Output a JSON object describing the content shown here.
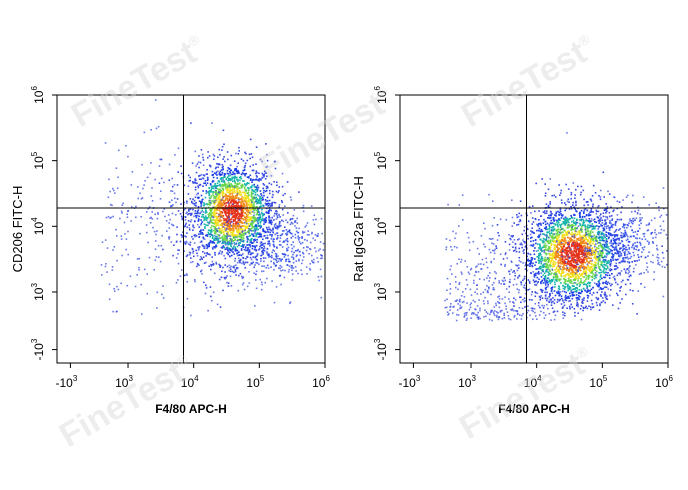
{
  "watermark": {
    "brand": "FineTest",
    "registered": "®"
  },
  "chart_data": [
    {
      "type": "scatter",
      "title": "",
      "xlabel": "F4/80 APC-H",
      "ylabel": "CD206 FITC-H",
      "x_ticks": [
        {
          "base": "-10",
          "exp": "3"
        },
        {
          "base": "10",
          "exp": "3"
        },
        {
          "base": "10",
          "exp": "4"
        },
        {
          "base": "10",
          "exp": "5"
        },
        {
          "base": "10",
          "exp": "6"
        }
      ],
      "y_ticks": [
        {
          "base": "-10",
          "exp": "3"
        },
        {
          "base": "10",
          "exp": "3"
        },
        {
          "base": "10",
          "exp": "4"
        },
        {
          "base": "10",
          "exp": "5"
        },
        {
          "base": "10",
          "exp": "6"
        }
      ],
      "x_scale": "biexponential",
      "y_scale": "biexponential",
      "xlim": [
        -1000,
        1000000
      ],
      "ylim": [
        -1000,
        1000000
      ],
      "gate": {
        "x": 7000,
        "y": 19000
      },
      "populations": [
        {
          "x": 38000,
          "y": 17000,
          "spread_x_decades": 0.32,
          "spread_y_decades": 0.38,
          "n": 2200,
          "density": "high"
        },
        {
          "x": 150000,
          "y": 5500,
          "spread_x_decades": 0.45,
          "spread_y_decades": 0.3,
          "n": 500,
          "density": "medium"
        },
        {
          "x": 5000,
          "y": 9000,
          "spread_x_decades": 0.7,
          "spread_y_decades": 0.6,
          "n": 350,
          "density": "low"
        }
      ]
    },
    {
      "type": "scatter",
      "title": "",
      "xlabel": "F4/80 APC-H",
      "ylabel": "Rat IgG2a FITC-H",
      "x_ticks": [
        {
          "base": "-10",
          "exp": "3"
        },
        {
          "base": "10",
          "exp": "3"
        },
        {
          "base": "10",
          "exp": "4"
        },
        {
          "base": "10",
          "exp": "5"
        },
        {
          "base": "10",
          "exp": "6"
        }
      ],
      "y_ticks": [
        {
          "base": "-10",
          "exp": "3"
        },
        {
          "base": "10",
          "exp": "3"
        },
        {
          "base": "10",
          "exp": "4"
        },
        {
          "base": "10",
          "exp": "5"
        },
        {
          "base": "10",
          "exp": "6"
        }
      ],
      "x_scale": "biexponential",
      "y_scale": "biexponential",
      "xlim": [
        -1000,
        1000000
      ],
      "ylim": [
        -1000,
        1000000
      ],
      "gate": {
        "x": 7000,
        "y": 19000
      },
      "populations": [
        {
          "x": 35000,
          "y": 3800,
          "spread_x_decades": 0.38,
          "spread_y_decades": 0.38,
          "n": 2400,
          "density": "high"
        },
        {
          "x": 180000,
          "y": 6000,
          "spread_x_decades": 0.45,
          "spread_y_decades": 0.3,
          "n": 450,
          "density": "medium"
        },
        {
          "x": 2500,
          "y": 1200,
          "spread_x_decades": 0.55,
          "spread_y_decades": 0.55,
          "n": 450,
          "density": "low"
        }
      ]
    }
  ]
}
